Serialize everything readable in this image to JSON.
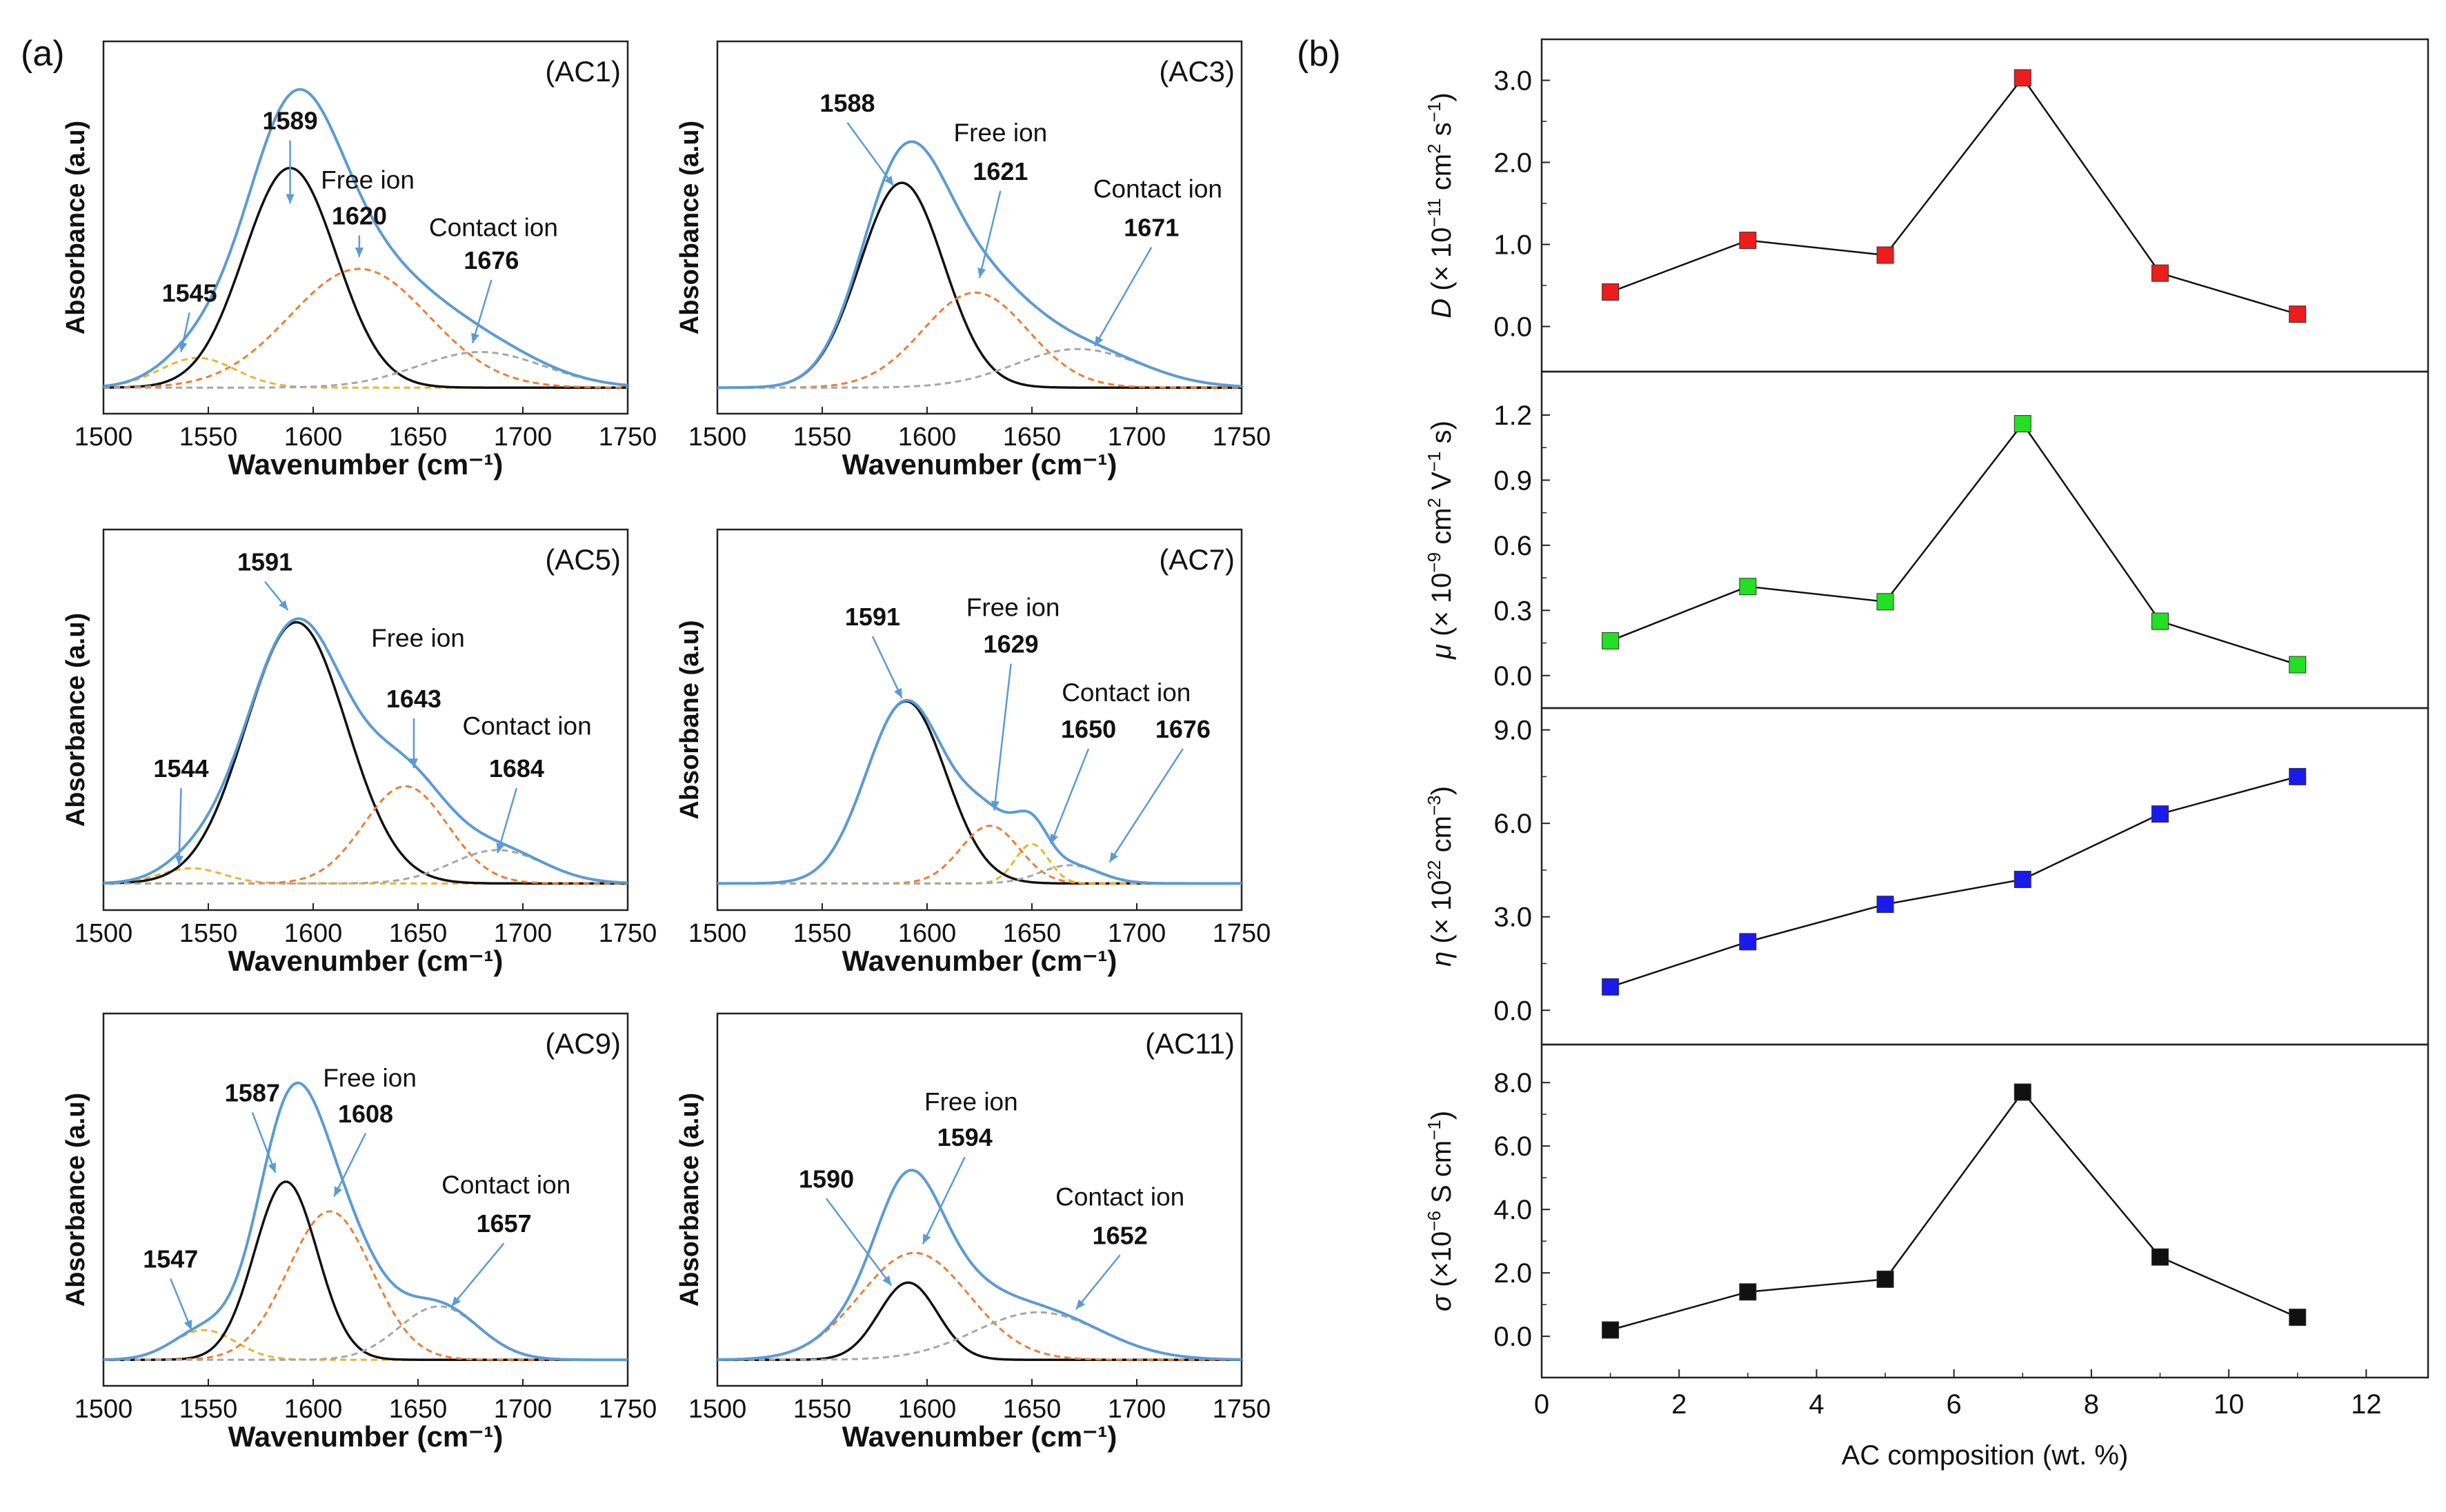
{
  "panel_letters": {
    "a": "(a)",
    "b": "(b)"
  },
  "chart_data": [
    {
      "type": "line",
      "kind": "ftir",
      "tag": "(AC1)",
      "xlabel": "Wavenumber (cm⁻¹)",
      "ylabel": "Absorbance (a.u)",
      "xlim": [
        1500,
        1750
      ],
      "xticks": [
        1500,
        1550,
        1600,
        1650,
        1700,
        1750
      ],
      "components": [
        {
          "name": "1545",
          "color": "#e8b52c",
          "dash": true,
          "center": 1545,
          "height": 0.1,
          "width": 18
        },
        {
          "name": "1589",
          "color": "#111111",
          "dash": false,
          "center": 1589,
          "height": 0.74,
          "width": 22
        },
        {
          "name": "1620",
          "color": "#ed7d31",
          "dash": true,
          "center": 1622,
          "height": 0.4,
          "width": 33
        },
        {
          "name": "1676",
          "color": "#a6a6a6",
          "dash": true,
          "center": 1680,
          "height": 0.12,
          "width": 30
        }
      ],
      "labels": [
        {
          "text": "1545",
          "bold": true,
          "pos": [
            1541,
            0.29
          ],
          "arrow": [
            1537,
            0.12
          ]
        },
        {
          "text": "1589",
          "bold": true,
          "pos": [
            1589,
            0.87
          ],
          "arrow": [
            1589,
            0.62
          ]
        },
        {
          "text": "Free ion",
          "bold": false,
          "pos": [
            1626,
            0.67
          ]
        },
        {
          "text": "1620",
          "bold": true,
          "pos": [
            1622,
            0.55
          ],
          "arrow": [
            1622,
            0.44
          ]
        },
        {
          "text": "Contact ion",
          "bold": false,
          "pos": [
            1686,
            0.51
          ]
        },
        {
          "text": "1676",
          "bold": true,
          "pos": [
            1685,
            0.4
          ],
          "arrow": [
            1676,
            0.15
          ]
        }
      ]
    },
    {
      "type": "line",
      "kind": "ftir",
      "tag": "(AC3)",
      "xlabel": "Wavenumber (cm⁻¹)",
      "ylabel": "Absorbance (a.u)",
      "xlim": [
        1500,
        1750
      ],
      "xticks": [
        1500,
        1550,
        1600,
        1650,
        1700,
        1750
      ],
      "components": [
        {
          "name": "1588",
          "color": "#111111",
          "dash": false,
          "center": 1588,
          "height": 0.69,
          "width": 20
        },
        {
          "name": "1621",
          "color": "#ed7d31",
          "dash": true,
          "center": 1623,
          "height": 0.32,
          "width": 25
        },
        {
          "name": "1671",
          "color": "#a6a6a6",
          "dash": true,
          "center": 1672,
          "height": 0.13,
          "width": 30
        }
      ],
      "labels": [
        {
          "text": "1588",
          "bold": true,
          "pos": [
            1562,
            0.93
          ],
          "arrow": [
            1584,
            0.68
          ]
        },
        {
          "text": "Free ion",
          "bold": false,
          "pos": [
            1635,
            0.83
          ]
        },
        {
          "text": "1621",
          "bold": true,
          "pos": [
            1635,
            0.7
          ],
          "arrow": [
            1625,
            0.37
          ]
        },
        {
          "text": "Contact ion",
          "bold": false,
          "pos": [
            1710,
            0.64
          ]
        },
        {
          "text": "1671",
          "bold": true,
          "pos": [
            1707,
            0.51
          ],
          "arrow": [
            1680,
            0.14
          ]
        }
      ]
    },
    {
      "type": "line",
      "kind": "ftir",
      "tag": "(AC5)",
      "xlabel": "Wavenumber (cm⁻¹)",
      "ylabel": "Absorbance (a.u)",
      "xlim": [
        1500,
        1750
      ],
      "xticks": [
        1500,
        1550,
        1600,
        1650,
        1700,
        1750
      ],
      "components": [
        {
          "name": "1544",
          "color": "#e8b52c",
          "dash": true,
          "center": 1542,
          "height": 0.05,
          "width": 15
        },
        {
          "name": "1591",
          "color": "#111111",
          "dash": false,
          "center": 1592,
          "height": 0.86,
          "width": 24
        },
        {
          "name": "1643",
          "color": "#ed7d31",
          "dash": true,
          "center": 1644,
          "height": 0.32,
          "width": 20
        },
        {
          "name": "1684",
          "color": "#a6a6a6",
          "dash": true,
          "center": 1688,
          "height": 0.11,
          "width": 22
        }
      ],
      "labels": [
        {
          "text": "1544",
          "bold": true,
          "pos": [
            1537,
            0.35
          ],
          "arrow": [
            1536,
            0.06
          ]
        },
        {
          "text": "1591",
          "bold": true,
          "pos": [
            1577,
            1.03
          ],
          "arrow": [
            1588,
            0.9
          ]
        },
        {
          "text": "Free ion",
          "bold": false,
          "pos": [
            1650,
            0.78
          ]
        },
        {
          "text": "1643",
          "bold": true,
          "pos": [
            1648,
            0.58
          ],
          "arrow": [
            1648,
            0.38
          ]
        },
        {
          "text": "Contact ion",
          "bold": false,
          "pos": [
            1702,
            0.49
          ]
        },
        {
          "text": "1684",
          "bold": true,
          "pos": [
            1697,
            0.35
          ],
          "arrow": [
            1688,
            0.1
          ]
        }
      ]
    },
    {
      "type": "line",
      "kind": "ftir",
      "tag": "(AC7)",
      "xlabel": "Wavenumber (cm⁻¹)",
      "ylabel": "Absorbane (a.u)",
      "xlim": [
        1500,
        1750
      ],
      "xticks": [
        1500,
        1550,
        1600,
        1650,
        1700,
        1750
      ],
      "components": [
        {
          "name": "1591",
          "color": "#111111",
          "dash": false,
          "center": 1590,
          "height": 0.6,
          "width": 19
        },
        {
          "name": "1629",
          "color": "#ed7d31",
          "dash": true,
          "center": 1630,
          "height": 0.19,
          "width": 14
        },
        {
          "name": "1650",
          "color": "#e8b52c",
          "dash": true,
          "center": 1650,
          "height": 0.13,
          "width": 8
        },
        {
          "name": "1676",
          "color": "#a6a6a6",
          "dash": true,
          "center": 1668,
          "height": 0.06,
          "width": 14
        }
      ],
      "labels": [
        {
          "text": "1591",
          "bold": true,
          "pos": [
            1574,
            0.85
          ],
          "arrow": [
            1588,
            0.61
          ]
        },
        {
          "text": "Free ion",
          "bold": false,
          "pos": [
            1641,
            0.88
          ]
        },
        {
          "text": "1629",
          "bold": true,
          "pos": [
            1640,
            0.76
          ],
          "arrow": [
            1632,
            0.24
          ]
        },
        {
          "text": "Contact ion",
          "bold": false,
          "pos": [
            1695,
            0.6
          ]
        },
        {
          "text": "1650",
          "bold": true,
          "pos": [
            1677,
            0.48
          ],
          "arrow": [
            1659,
            0.13
          ]
        },
        {
          "text": "1676",
          "bold": true,
          "pos": [
            1722,
            0.48
          ],
          "arrow": [
            1687,
            0.07
          ]
        }
      ]
    },
    {
      "type": "line",
      "kind": "ftir",
      "tag": "(AC9)",
      "xlabel": "Wavenumber (cm⁻¹)",
      "ylabel": "Absorbance (a.u)",
      "xlim": [
        1500,
        1750
      ],
      "xticks": [
        1500,
        1550,
        1600,
        1650,
        1700,
        1750
      ],
      "components": [
        {
          "name": "1547",
          "color": "#e8b52c",
          "dash": true,
          "center": 1548,
          "height": 0.1,
          "width": 15
        },
        {
          "name": "1587",
          "color": "#111111",
          "dash": false,
          "center": 1587,
          "height": 0.6,
          "width": 15
        },
        {
          "name": "1608",
          "color": "#ed7d31",
          "dash": true,
          "center": 1608,
          "height": 0.5,
          "width": 20
        },
        {
          "name": "1657",
          "color": "#a6a6a6",
          "dash": true,
          "center": 1660,
          "height": 0.18,
          "width": 19
        }
      ],
      "labels": [
        {
          "text": "1547",
          "bold": true,
          "pos": [
            1532,
            0.31
          ],
          "arrow": [
            1542,
            0.1
          ]
        },
        {
          "text": "1587",
          "bold": true,
          "pos": [
            1571,
            0.87
          ],
          "arrow": [
            1582,
            0.63
          ]
        },
        {
          "text": "Free ion",
          "bold": false,
          "pos": [
            1627,
            0.92
          ]
        },
        {
          "text": "1608",
          "bold": true,
          "pos": [
            1625,
            0.8
          ],
          "arrow": [
            1610,
            0.55
          ]
        },
        {
          "text": "Contact ion",
          "bold": false,
          "pos": [
            1692,
            0.56
          ]
        },
        {
          "text": "1657",
          "bold": true,
          "pos": [
            1691,
            0.43
          ],
          "arrow": [
            1666,
            0.18
          ]
        }
      ]
    },
    {
      "type": "line",
      "kind": "ftir",
      "tag": "(AC11)",
      "xlabel": "Wavenumber (cm⁻¹)",
      "ylabel": "Absorbance (a.u)",
      "xlim": [
        1500,
        1750
      ],
      "xticks": [
        1500,
        1550,
        1600,
        1650,
        1700,
        1750
      ],
      "components": [
        {
          "name": "1590",
          "color": "#111111",
          "dash": false,
          "center": 1591,
          "height": 0.26,
          "width": 14
        },
        {
          "name": "1594",
          "color": "#ed7d31",
          "dash": true,
          "center": 1594,
          "height": 0.36,
          "width": 26
        },
        {
          "name": "1652",
          "color": "#a6a6a6",
          "dash": true,
          "center": 1653,
          "height": 0.16,
          "width": 30
        }
      ],
      "labels": [
        {
          "text": "1590",
          "bold": true,
          "pos": [
            1552,
            0.58
          ],
          "arrow": [
            1583,
            0.25
          ]
        },
        {
          "text": "Free ion",
          "bold": false,
          "pos": [
            1621,
            0.84
          ]
        },
        {
          "text": "1594",
          "bold": true,
          "pos": [
            1618,
            0.72
          ],
          "arrow": [
            1598,
            0.39
          ]
        },
        {
          "text": "Contact ion",
          "bold": false,
          "pos": [
            1692,
            0.52
          ]
        },
        {
          "text": "1652",
          "bold": true,
          "pos": [
            1692,
            0.39
          ],
          "arrow": [
            1671,
            0.17
          ]
        }
      ]
    },
    {
      "type": "scatter",
      "kind": "stack",
      "series_name": "D",
      "ylabel": {
        "symbol": "D",
        "text": " (× 10",
        "sup": "−11",
        "text2": " cm",
        "sup2": "2",
        "text3": " s",
        "sup3": "−1",
        "text4": ")"
      },
      "color": "#ee1c1c",
      "x": [
        1,
        3,
        5,
        7,
        9,
        11
      ],
      "y": [
        0.42,
        1.05,
        0.87,
        3.03,
        0.65,
        0.15
      ],
      "ylim": [
        -0.55,
        3.5
      ],
      "yticks": [
        0.0,
        1.0,
        2.0,
        3.0
      ],
      "ytick_labels": [
        "0.0",
        "1.0",
        "2.0",
        "3.0"
      ]
    },
    {
      "type": "scatter",
      "kind": "stack",
      "series_name": "mu",
      "ylabel": {
        "symbol": "μ",
        "text": " (× 10",
        "sup": "−9",
        "text2": " cm",
        "sup2": "2",
        "text3": " V",
        "sup3": "−1",
        "text4": " s)"
      },
      "color": "#22e022",
      "x": [
        1,
        3,
        5,
        7,
        9,
        11
      ],
      "y": [
        0.16,
        0.41,
        0.34,
        1.16,
        0.25,
        0.05
      ],
      "ylim": [
        -0.15,
        1.4
      ],
      "yticks": [
        0.0,
        0.3,
        0.6,
        0.9,
        1.2
      ],
      "ytick_labels": [
        "0.0",
        "0.3",
        "0.6",
        "0.9",
        "1.2"
      ]
    },
    {
      "type": "scatter",
      "kind": "stack",
      "series_name": "eta",
      "ylabel": {
        "symbol": "η",
        "text": " (× 10",
        "sup": "22",
        "text2": " cm",
        "sup2": "−3",
        "text3": ")",
        "sup3": "",
        "text4": ""
      },
      "color": "#1a1aee",
      "x": [
        1,
        3,
        5,
        7,
        9,
        11
      ],
      "y": [
        0.75,
        2.2,
        3.4,
        4.2,
        6.3,
        7.5
      ],
      "ylim": [
        -1.1,
        9.7
      ],
      "yticks": [
        0.0,
        3.0,
        6.0,
        9.0
      ],
      "ytick_labels": [
        "0.0",
        "3.0",
        "6.0",
        "9.0"
      ]
    },
    {
      "type": "scatter",
      "kind": "stack",
      "series_name": "sigma",
      "ylabel": {
        "symbol": "σ",
        "text": " (×10",
        "sup": "−6",
        "text2": " S cm",
        "sup2": "−1",
        "text3": ")",
        "sup3": "",
        "text4": ""
      },
      "color": "#111111",
      "x": [
        1,
        3,
        5,
        7,
        9,
        11
      ],
      "y": [
        0.2,
        1.4,
        1.8,
        7.7,
        2.5,
        0.6
      ],
      "ylim": [
        -1.3,
        9.2
      ],
      "yticks": [
        0.0,
        2.0,
        4.0,
        6.0,
        8.0
      ],
      "ytick_labels": [
        "0.0",
        "2.0",
        "4.0",
        "6.0",
        "8.0"
      ],
      "xlabel": "AC composition (wt. %)",
      "xlim": [
        0,
        12.9
      ],
      "xticks": [
        0,
        2,
        4,
        6,
        8,
        10,
        12
      ]
    }
  ]
}
